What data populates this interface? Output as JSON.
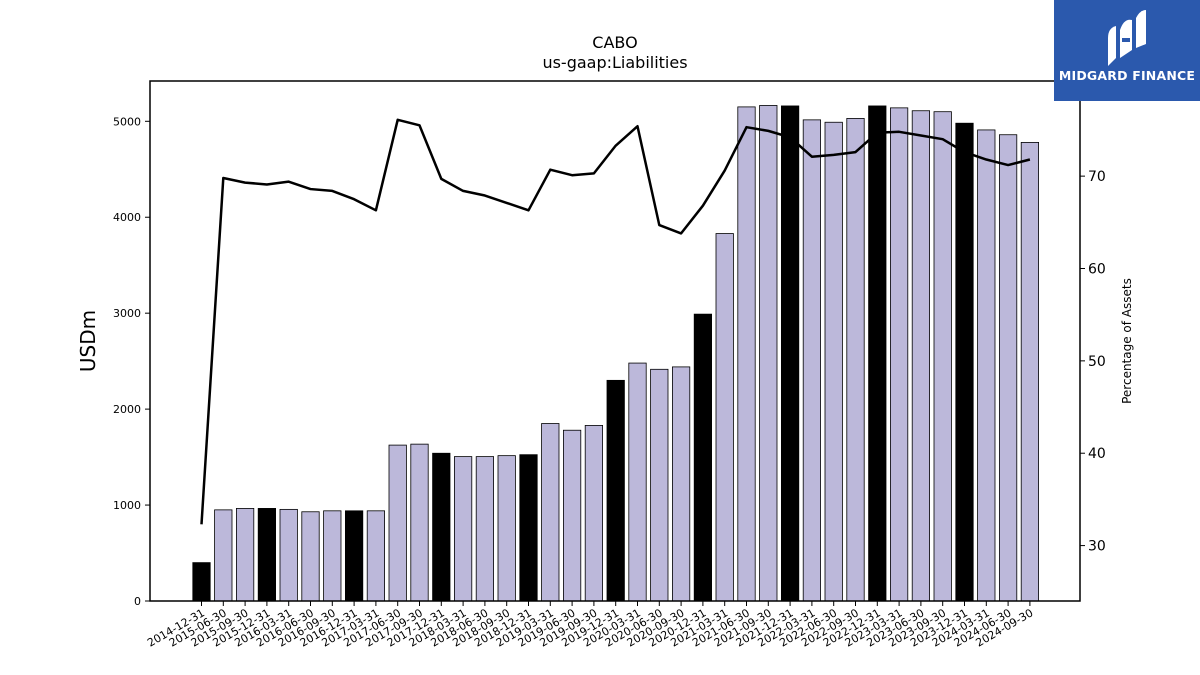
{
  "brand": {
    "name": "MIDGARD FINANCE",
    "icon": "midgard-logo-icon",
    "color": "#2b59ad"
  },
  "chart_data": {
    "type": "bar",
    "title": "CABO",
    "subtitle": "us-gaap:Liabilities",
    "ylabel": "USDm",
    "y2label": "Percentage of Assets",
    "ylim": [
      0,
      5420
    ],
    "y2lim": [
      24.0,
      80.3
    ],
    "yticks": [
      0,
      1000,
      2000,
      3000,
      4000,
      5000
    ],
    "y2ticks": [
      30,
      40,
      50,
      60,
      70
    ],
    "grid": false,
    "categories": [
      "2014-12-31",
      "2015-06-30",
      "2015-09-30",
      "2015-12-31",
      "2016-03-31",
      "2016-06-30",
      "2016-09-30",
      "2016-12-31",
      "2017-03-31",
      "2017-06-30",
      "2017-09-30",
      "2017-12-31",
      "2018-03-31",
      "2018-06-30",
      "2018-09-30",
      "2018-12-31",
      "2019-03-31",
      "2019-06-30",
      "2019-09-30",
      "2019-12-31",
      "2020-03-31",
      "2020-06-30",
      "2020-09-30",
      "2020-12-31",
      "2021-03-31",
      "2021-06-30",
      "2021-09-30",
      "2021-12-31",
      "2022-03-31",
      "2022-06-30",
      "2022-09-30",
      "2022-12-31",
      "2023-03-31",
      "2023-06-30",
      "2023-09-30",
      "2023-12-31",
      "2024-03-31",
      "2024-06-30",
      "2024-09-30"
    ],
    "series": [
      {
        "axis": "left",
        "kind": "bar",
        "values": [
          400,
          950,
          965,
          965,
          955,
          930,
          940,
          940,
          940,
          1625,
          1635,
          1540,
          1505,
          1505,
          1515,
          1525,
          1850,
          1780,
          1830,
          2300,
          2480,
          2415,
          2440,
          2990,
          3830,
          5150,
          5165,
          5160,
          5015,
          4990,
          5030,
          5160,
          5140,
          5110,
          5100,
          4980,
          4910,
          4860,
          4780
        ],
        "colors": [
          "#000000",
          "#bcb8da",
          "#bcb8da",
          "#000000",
          "#bcb8da",
          "#bcb8da",
          "#bcb8da",
          "#000000",
          "#bcb8da",
          "#bcb8da",
          "#bcb8da",
          "#000000",
          "#bcb8da",
          "#bcb8da",
          "#bcb8da",
          "#000000",
          "#bcb8da",
          "#bcb8da",
          "#bcb8da",
          "#000000",
          "#bcb8da",
          "#bcb8da",
          "#bcb8da",
          "#000000",
          "#bcb8da",
          "#bcb8da",
          "#bcb8da",
          "#000000",
          "#bcb8da",
          "#bcb8da",
          "#bcb8da",
          "#000000",
          "#bcb8da",
          "#bcb8da",
          "#bcb8da",
          "#000000",
          "#bcb8da",
          "#bcb8da",
          "#bcb8da"
        ]
      },
      {
        "axis": "right",
        "kind": "line",
        "color": "#000000",
        "values": [
          32.3,
          69.8,
          69.3,
          69.1,
          69.4,
          68.6,
          68.4,
          67.5,
          66.3,
          76.1,
          75.5,
          69.7,
          68.4,
          67.9,
          67.1,
          66.3,
          70.7,
          70.1,
          70.3,
          73.3,
          75.4,
          64.7,
          63.8,
          66.8,
          70.6,
          75.3,
          74.9,
          74.2,
          72.1,
          72.3,
          72.6,
          74.7,
          74.8,
          74.4,
          74.0,
          72.6,
          71.8,
          71.2,
          71.8
        ]
      }
    ]
  }
}
